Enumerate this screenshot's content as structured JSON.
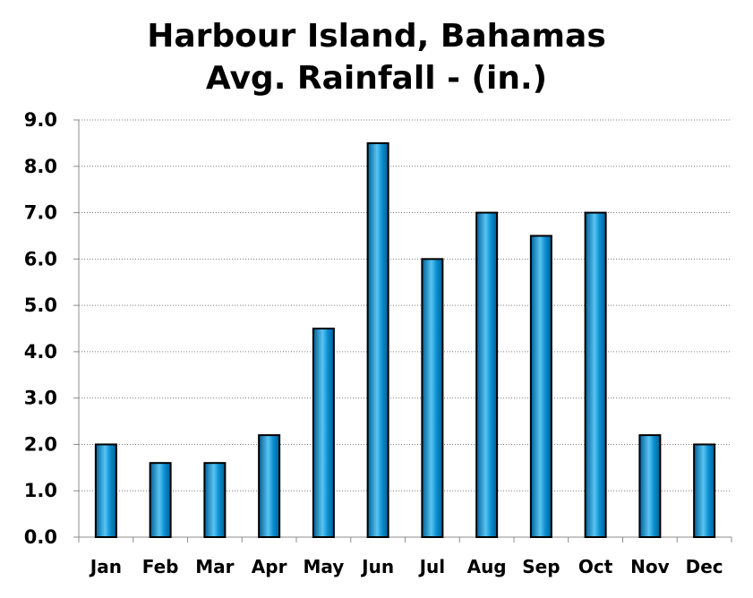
{
  "chart_data": {
    "type": "bar",
    "title": [
      "Harbour Island, Bahamas",
      "Avg. Rainfall - (in.)"
    ],
    "xlabel": "",
    "ylabel": "",
    "categories": [
      "Jan",
      "Feb",
      "Mar",
      "Apr",
      "May",
      "Jun",
      "Jul",
      "Aug",
      "Sep",
      "Oct",
      "Nov",
      "Dec"
    ],
    "values": [
      2.0,
      1.6,
      1.6,
      2.2,
      4.5,
      8.5,
      6.0,
      7.0,
      6.5,
      7.0,
      2.2,
      2.0
    ],
    "ylim": [
      0,
      9
    ],
    "yticks": [
      "0.0",
      "1.0",
      "2.0",
      "3.0",
      "4.0",
      "5.0",
      "6.0",
      "7.0",
      "8.0",
      "9.0"
    ],
    "grid": "horizontal dotted",
    "legend": "none",
    "colors": {
      "bar_dark": "#005f96",
      "bar_mid": "#0a8fd0",
      "bar_light": "#59c4f2",
      "bar_edge": "#000000",
      "grid": "#7f7f7f",
      "axis": "#8c8c8c"
    }
  }
}
